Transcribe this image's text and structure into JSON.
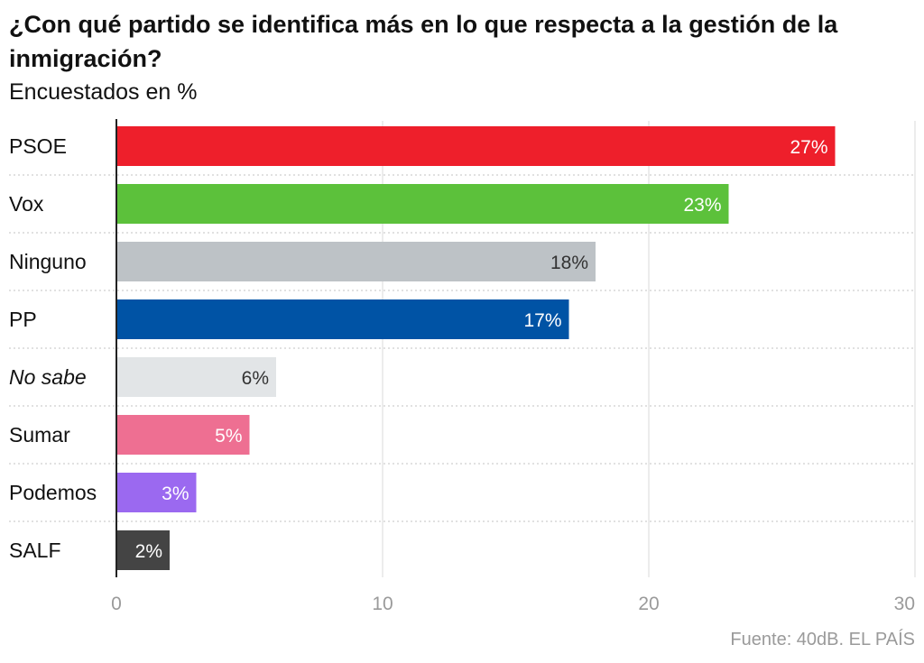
{
  "title": "¿Con qué partido se identifica más en lo que respecta a la gestión de la inmigración?",
  "subtitle": "Encuestados en %",
  "source": "Fuente: 40dB. EL PAÍS",
  "chart_data": {
    "type": "bar",
    "orientation": "horizontal",
    "categories": [
      "PSOE",
      "Vox",
      "Ninguno",
      "PP",
      "No sabe",
      "Sumar",
      "Podemos",
      "SALF"
    ],
    "values": [
      27,
      23,
      18,
      17,
      6,
      5,
      3,
      2
    ],
    "value_labels": [
      "27%",
      "23%",
      "18%",
      "17%",
      "6%",
      "5%",
      "3%",
      "2%"
    ],
    "italic_categories": [
      "No sabe"
    ],
    "colors": [
      "#ee1f2b",
      "#5cc13b",
      "#bdc2c6",
      "#0053a5",
      "#e2e5e7",
      "#ee6f92",
      "#9b69f0",
      "#444444"
    ],
    "label_colors": [
      "#ffffff",
      "#ffffff",
      "#333333",
      "#ffffff",
      "#333333",
      "#ffffff",
      "#ffffff",
      "#ffffff"
    ],
    "xticks": [
      0,
      10,
      20,
      30
    ],
    "xlim": [
      0,
      30
    ],
    "grid": true
  }
}
